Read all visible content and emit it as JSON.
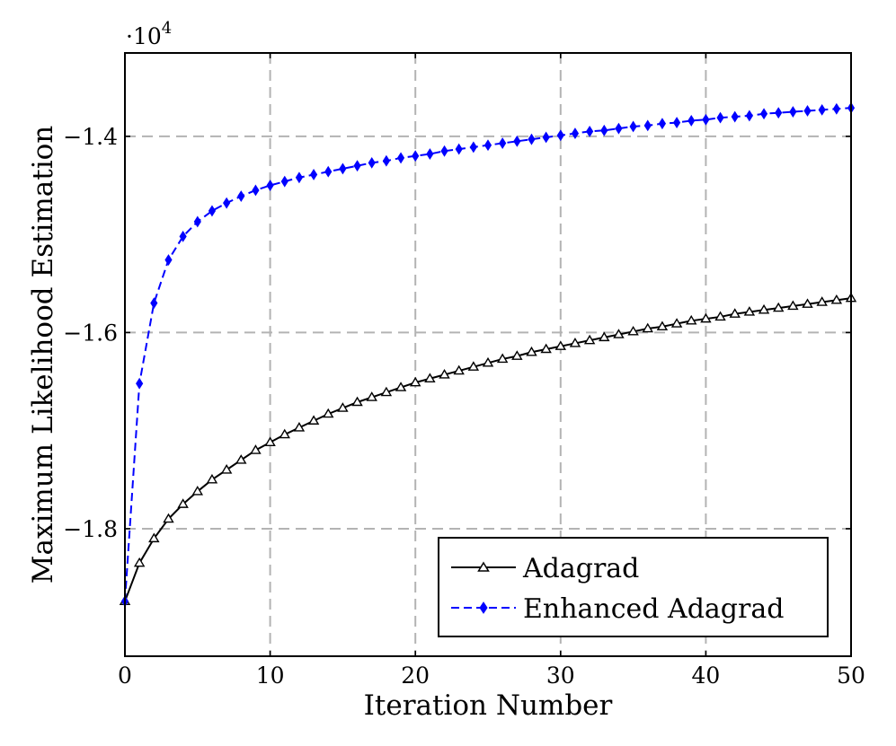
{
  "chart_data": {
    "type": "line",
    "title": "",
    "xlabel": "Iteration Number",
    "ylabel": "Maximum Likelihood Estimation",
    "y_multiplier_label": "·10",
    "y_multiplier_exponent": "4",
    "xlim": [
      0,
      50
    ],
    "ylim": [
      -1.93,
      -1.315
    ],
    "x_ticks": [
      0,
      10,
      20,
      30,
      40,
      50
    ],
    "x_tick_labels": [
      "0",
      "10",
      "20",
      "30",
      "40",
      "50"
    ],
    "y_ticks": [
      -1.8,
      -1.6,
      -1.4
    ],
    "y_tick_labels": [
      "−1.8",
      "−1.6",
      "−1.4"
    ],
    "grid": true,
    "legend_position": "bottom-right",
    "x": [
      0,
      1,
      2,
      3,
      4,
      5,
      6,
      7,
      8,
      9,
      10,
      11,
      12,
      13,
      14,
      15,
      16,
      17,
      18,
      19,
      20,
      21,
      22,
      23,
      24,
      25,
      26,
      27,
      28,
      29,
      30,
      31,
      32,
      33,
      34,
      35,
      36,
      37,
      38,
      39,
      40,
      41,
      42,
      43,
      44,
      45,
      46,
      47,
      48,
      49,
      50
    ],
    "series": [
      {
        "name": "Adagrad",
        "color": "#000000",
        "marker": "triangle",
        "line_style": "solid",
        "values": [
          -1.874,
          -1.835,
          -1.81,
          -1.79,
          -1.775,
          -1.762,
          -1.75,
          -1.74,
          -1.73,
          -1.72,
          -1.712,
          -1.704,
          -1.697,
          -1.69,
          -1.683,
          -1.677,
          -1.671,
          -1.666,
          -1.661,
          -1.656,
          -1.651,
          -1.647,
          -1.643,
          -1.639,
          -1.635,
          -1.631,
          -1.627,
          -1.624,
          -1.62,
          -1.617,
          -1.614,
          -1.611,
          -1.608,
          -1.605,
          -1.602,
          -1.599,
          -1.596,
          -1.594,
          -1.591,
          -1.588,
          -1.586,
          -1.584,
          -1.581,
          -1.579,
          -1.577,
          -1.575,
          -1.573,
          -1.571,
          -1.569,
          -1.567,
          -1.565
        ]
      },
      {
        "name": "Enhanced Adagrad",
        "color": "#0000ff",
        "marker": "diamond",
        "line_style": "dashed",
        "values": [
          -1.874,
          -1.652,
          -1.57,
          -1.526,
          -1.502,
          -1.487,
          -1.476,
          -1.468,
          -1.461,
          -1.455,
          -1.45,
          -1.446,
          -1.442,
          -1.439,
          -1.436,
          -1.433,
          -1.43,
          -1.427,
          -1.425,
          -1.422,
          -1.42,
          -1.418,
          -1.415,
          -1.413,
          -1.411,
          -1.409,
          -1.407,
          -1.405,
          -1.403,
          -1.401,
          -1.399,
          -1.397,
          -1.395,
          -1.394,
          -1.392,
          -1.39,
          -1.389,
          -1.387,
          -1.386,
          -1.384,
          -1.383,
          -1.381,
          -1.38,
          -1.379,
          -1.377,
          -1.376,
          -1.375,
          -1.374,
          -1.373,
          -1.372,
          -1.371
        ]
      }
    ]
  }
}
